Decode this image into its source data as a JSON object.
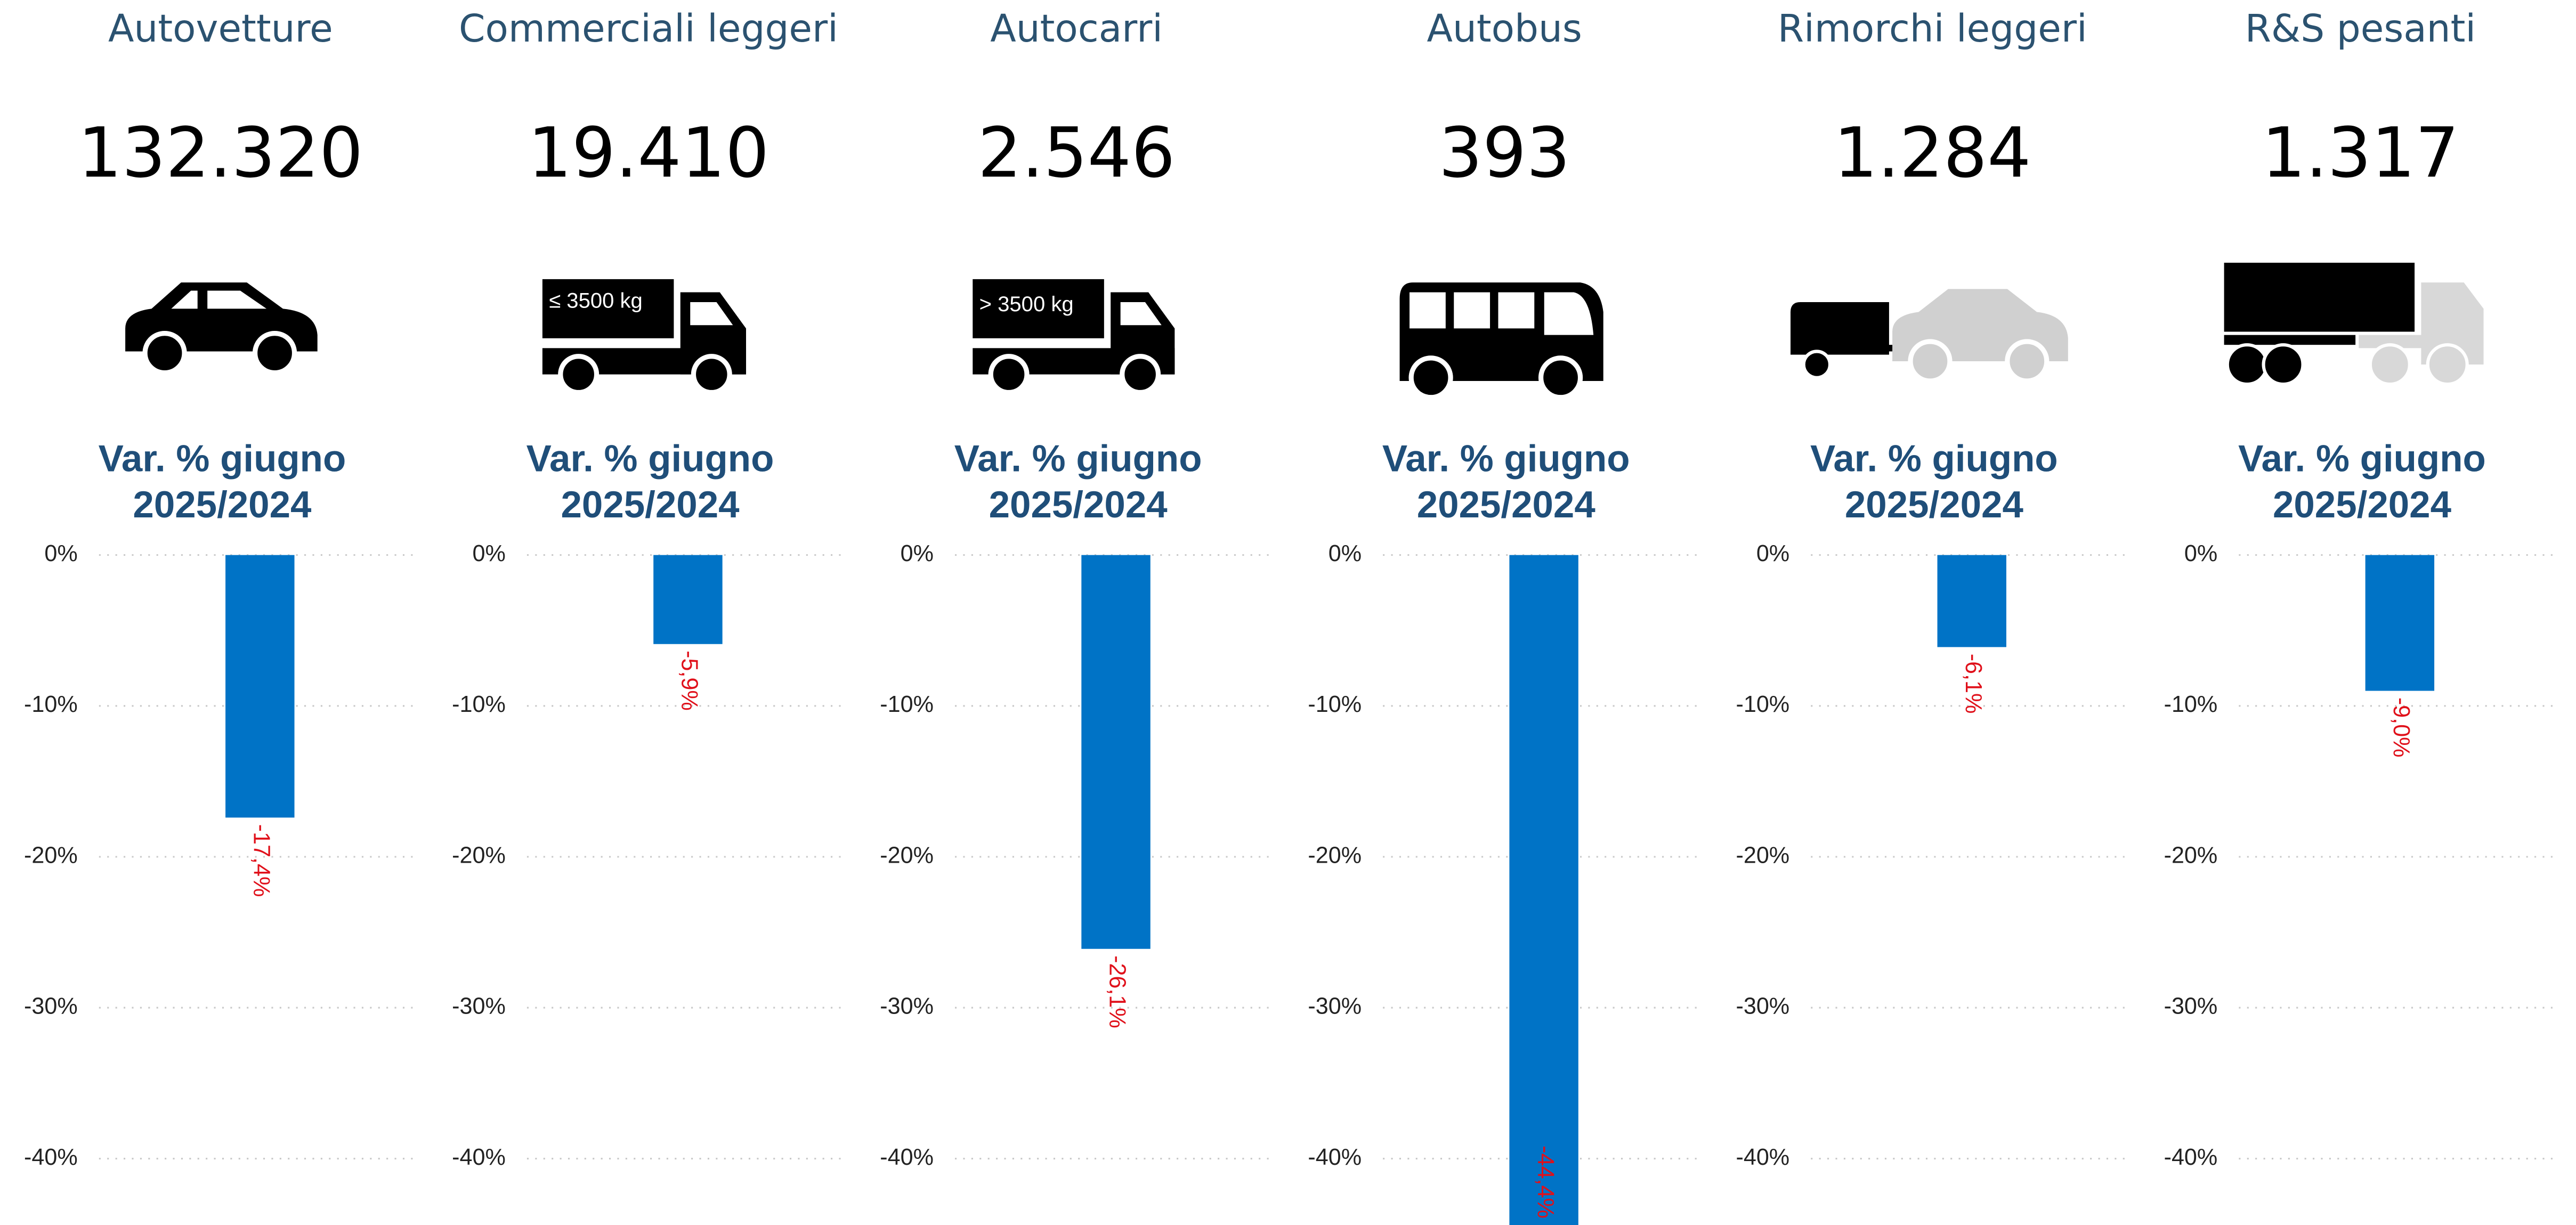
{
  "chart_data": [
    {
      "type": "bar",
      "title": "Autovetture",
      "kpi": "132.320",
      "subtitle": [
        "Var. % giugno",
        "2025/2024"
      ],
      "values": [
        -17.4
      ],
      "value_labels": [
        "-17,4%"
      ],
      "color": "#0073c6",
      "label_color": "#e0101a",
      "ylim": [
        -44.4,
        0
      ],
      "yticks": [
        {
          "value": 0,
          "label": "0%"
        },
        {
          "value": -10,
          "label": "-10%"
        },
        {
          "value": -20,
          "label": "-20%"
        },
        {
          "value": -30,
          "label": "-30%"
        },
        {
          "value": -40,
          "label": "-40%"
        }
      ],
      "grid": true
    },
    {
      "type": "bar",
      "title": "Commerciali leggeri",
      "kpi": "19.410",
      "icon_text": "≤ 3500 kg",
      "subtitle": [
        "Var. % giugno",
        "2025/2024"
      ],
      "values": [
        -5.9
      ],
      "value_labels": [
        "-5,9%"
      ],
      "color": "#0073c6",
      "label_color": "#e0101a",
      "ylim": [
        -44.4,
        0
      ],
      "yticks": [
        {
          "value": 0,
          "label": "0%"
        },
        {
          "value": -10,
          "label": "-10%"
        },
        {
          "value": -20,
          "label": "-20%"
        },
        {
          "value": -30,
          "label": "-30%"
        },
        {
          "value": -40,
          "label": "-40%"
        }
      ],
      "grid": true
    },
    {
      "type": "bar",
      "title": "Autocarri",
      "kpi": "2.546",
      "icon_text": "> 3500 kg",
      "subtitle": [
        "Var. % giugno",
        "2025/2024"
      ],
      "values": [
        -26.1
      ],
      "value_labels": [
        "-26,1%"
      ],
      "color": "#0073c6",
      "label_color": "#e0101a",
      "ylim": [
        -44.4,
        0
      ],
      "yticks": [
        {
          "value": 0,
          "label": "0%"
        },
        {
          "value": -10,
          "label": "-10%"
        },
        {
          "value": -20,
          "label": "-20%"
        },
        {
          "value": -30,
          "label": "-30%"
        },
        {
          "value": -40,
          "label": "-40%"
        }
      ],
      "grid": true
    },
    {
      "type": "bar",
      "title": "Autobus",
      "kpi": "393",
      "subtitle": [
        "Var. % giugno",
        "2025/2024"
      ],
      "values": [
        -44.4
      ],
      "value_labels": [
        "-44,4%"
      ],
      "color": "#0073c6",
      "label_color": "#e0101a",
      "ylim": [
        -44.4,
        0
      ],
      "yticks": [
        {
          "value": 0,
          "label": "0%"
        },
        {
          "value": -10,
          "label": "-10%"
        },
        {
          "value": -20,
          "label": "-20%"
        },
        {
          "value": -30,
          "label": "-30%"
        },
        {
          "value": -40,
          "label": "-40%"
        }
      ],
      "grid": true
    },
    {
      "type": "bar",
      "title": "Rimorchi leggeri",
      "kpi": "1.284",
      "subtitle": [
        "Var. % giugno",
        "2025/2024"
      ],
      "values": [
        -6.1
      ],
      "value_labels": [
        "-6,1%"
      ],
      "color": "#0073c6",
      "label_color": "#e0101a",
      "ylim": [
        -44.4,
        0
      ],
      "yticks": [
        {
          "value": 0,
          "label": "0%"
        },
        {
          "value": -10,
          "label": "-10%"
        },
        {
          "value": -20,
          "label": "-20%"
        },
        {
          "value": -30,
          "label": "-30%"
        },
        {
          "value": -40,
          "label": "-40%"
        }
      ],
      "grid": true
    },
    {
      "type": "bar",
      "title": "R&S pesanti",
      "kpi": "1.317",
      "subtitle": [
        "Var. % giugno",
        "2025/2024"
      ],
      "values": [
        -9.0
      ],
      "value_labels": [
        "-9,0%"
      ],
      "color": "#0073c6",
      "label_color": "#e0101a",
      "ylim": [
        -44.4,
        0
      ],
      "yticks": [
        {
          "value": 0,
          "label": "0%"
        },
        {
          "value": -10,
          "label": "-10%"
        },
        {
          "value": -20,
          "label": "-20%"
        },
        {
          "value": -30,
          "label": "-30%"
        },
        {
          "value": -40,
          "label": "-40%"
        }
      ],
      "grid": true
    }
  ]
}
